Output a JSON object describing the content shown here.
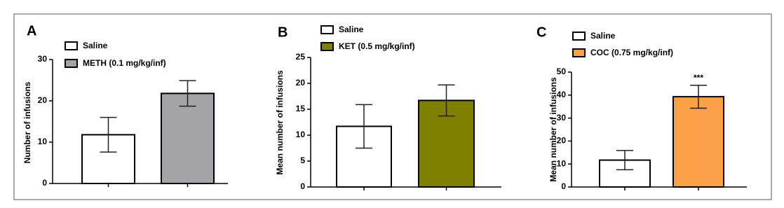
{
  "chart_data": [
    {
      "type": "bar",
      "panel": "A",
      "ylabel": "Number of infusions",
      "ylim": [
        0,
        30
      ],
      "yticks": [
        0,
        10,
        20,
        30
      ],
      "series": [
        {
          "name": "Saline",
          "color": "#ffffff",
          "values": [
            11.8
          ],
          "errors": [
            4.2
          ]
        },
        {
          "name": "METH (0.1 mg/kg/inf)",
          "color": "#a4a3a8",
          "values": [
            21.8
          ],
          "errors": [
            3.1
          ]
        }
      ]
    },
    {
      "type": "bar",
      "panel": "B",
      "ylabel": "Mean number of infusions",
      "ylim": [
        0,
        25
      ],
      "yticks": [
        0,
        5,
        10,
        15,
        20,
        25
      ],
      "series": [
        {
          "name": "Saline",
          "color": "#ffffff",
          "values": [
            11.7
          ],
          "errors": [
            4.2
          ]
        },
        {
          "name": "KET (0.5 mg/kg/inf)",
          "color": "#7f7f00",
          "values": [
            16.7
          ],
          "errors": [
            3.0
          ]
        }
      ]
    },
    {
      "type": "bar",
      "panel": "C",
      "ylabel": "Mean number of infusions",
      "annotation": "***",
      "ylim": [
        0,
        50
      ],
      "yticks": [
        0,
        10,
        20,
        30,
        40,
        50
      ],
      "series": [
        {
          "name": "Saline",
          "color": "#ffffff",
          "values": [
            11.7
          ],
          "errors": [
            4.2
          ]
        },
        {
          "name": "COC (0.75 mg/kg/inf)",
          "color": "#fba148",
          "values": [
            39.3
          ],
          "errors": [
            5.0
          ]
        }
      ]
    }
  ]
}
